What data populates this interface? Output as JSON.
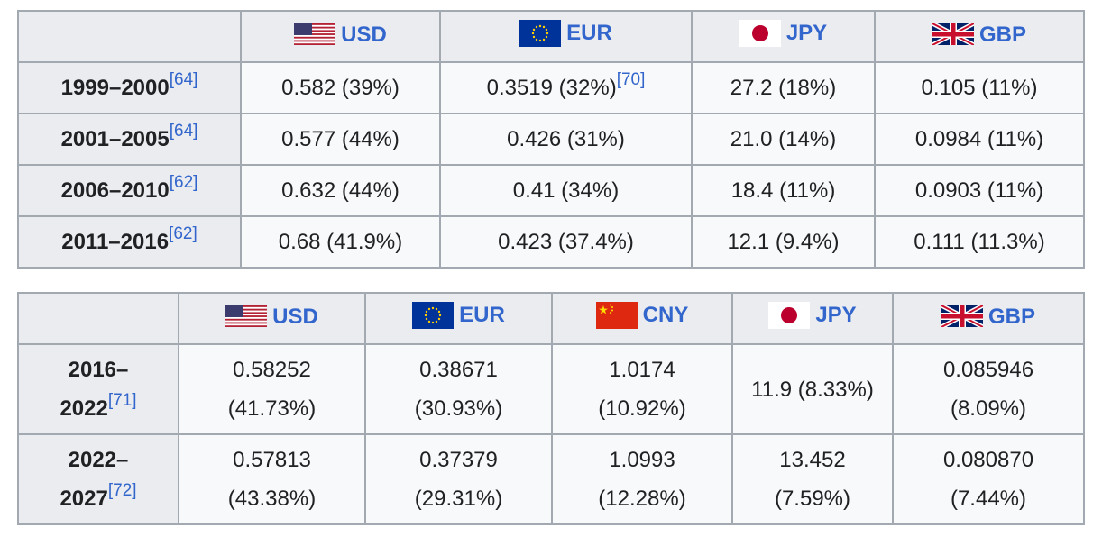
{
  "table1": {
    "headers": [
      {
        "code": "USD",
        "flag": "us-flag-icon"
      },
      {
        "code": "EUR",
        "flag": "eu-flag-icon"
      },
      {
        "code": "JPY",
        "flag": "japan-flag-icon"
      },
      {
        "code": "GBP",
        "flag": "uk-flag-icon"
      }
    ],
    "rows": [
      {
        "period": "1999–2000",
        "ref": "[64]",
        "cells": [
          "0.582 (39%)",
          "0.3519 (32%)",
          "27.2 (18%)",
          "0.105 (11%)"
        ],
        "cell_refs": [
          "",
          "[70]",
          "",
          ""
        ]
      },
      {
        "period": "2001–2005",
        "ref": "[64]",
        "cells": [
          "0.577 (44%)",
          "0.426 (31%)",
          "21.0 (14%)",
          "0.0984 (11%)"
        ]
      },
      {
        "period": "2006–2010",
        "ref": "[62]",
        "cells": [
          "0.632 (44%)",
          "0.41 (34%)",
          "18.4 (11%)",
          "0.0903 (11%)"
        ]
      },
      {
        "period": "2011–2016",
        "ref": "[62]",
        "cells": [
          "0.68 (41.9%)",
          "0.423 (37.4%)",
          "12.1 (9.4%)",
          "0.111 (11.3%)"
        ]
      }
    ]
  },
  "table2": {
    "headers": [
      {
        "code": "USD",
        "flag": "us-flag-icon"
      },
      {
        "code": "EUR",
        "flag": "eu-flag-icon"
      },
      {
        "code": "CNY",
        "flag": "china-flag-icon"
      },
      {
        "code": "JPY",
        "flag": "japan-flag-icon"
      },
      {
        "code": "GBP",
        "flag": "uk-flag-icon"
      }
    ],
    "rows": [
      {
        "period_a": "2016–",
        "period_b": "2022",
        "ref": "[71]",
        "cells": [
          [
            "0.58252",
            "(41.73%)"
          ],
          [
            "0.38671",
            "(30.93%)"
          ],
          [
            "1.0174",
            "(10.92%)"
          ],
          [
            "11.9 (8.33%)",
            ""
          ],
          [
            "0.085946",
            "(8.09%)"
          ]
        ]
      },
      {
        "period_a": "2022–",
        "period_b": "2027",
        "ref": "[72]",
        "cells": [
          [
            "0.57813",
            "(43.38%)"
          ],
          [
            "0.37379",
            "(29.31%)"
          ],
          [
            "1.0993",
            "(12.28%)"
          ],
          [
            "13.452",
            "(7.59%)"
          ],
          [
            "0.080870",
            "(7.44%)"
          ]
        ]
      }
    ]
  }
}
